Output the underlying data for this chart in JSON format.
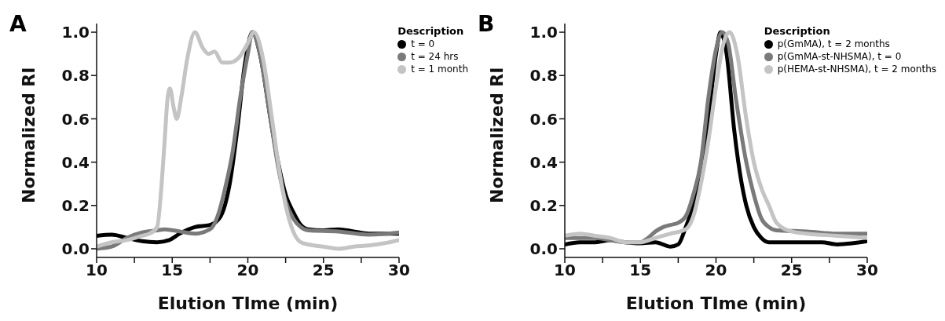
{
  "chart_data": [
    {
      "type": "line",
      "annotations": [
        "A"
      ],
      "xlabel": "Elution TIme (min)",
      "ylabel": "Normalized RI",
      "legend_title": "Description",
      "legend": "top right",
      "marker": "none",
      "line_style": "solid",
      "xlim": [
        10,
        30
      ],
      "xticks": [
        10,
        {
          "value": 12.5,
          "label": null
        },
        15,
        {
          "value": 17.5,
          "label": null
        },
        20,
        {
          "value": 22.5,
          "label": null
        },
        25,
        {
          "value": 27.5,
          "label": null
        },
        30
      ],
      "ylim": [
        -0.04,
        1.04
      ],
      "yticks": [
        {
          "value": 0,
          "label": "0.0"
        },
        {
          "value": 0.2,
          "label": "0.2"
        },
        {
          "value": 0.4,
          "label": "0.4"
        },
        {
          "value": 0.6,
          "label": "0.6"
        },
        {
          "value": 0.8,
          "label": "0.8"
        },
        {
          "value": 1,
          "label": "1.0"
        }
      ],
      "series": [
        {
          "name": "t = 0",
          "color": "#000000",
          "x": [
            10,
            11,
            12,
            13,
            14,
            14.8,
            15.5,
            16.5,
            17.5,
            18.2,
            18.8,
            19.3,
            19.8,
            20.3,
            20.8,
            21.5,
            22,
            22.5,
            23,
            23.5,
            24,
            25,
            26,
            27,
            28,
            29,
            30
          ],
          "values": [
            0.06,
            0.065,
            0.05,
            0.035,
            0.03,
            0.04,
            0.07,
            0.1,
            0.11,
            0.15,
            0.3,
            0.55,
            0.85,
            1.0,
            0.9,
            0.6,
            0.4,
            0.25,
            0.17,
            0.11,
            0.09,
            0.085,
            0.09,
            0.08,
            0.07,
            0.07,
            0.07
          ]
        },
        {
          "name": "t = 24 hrs",
          "color": "#7a7a7a",
          "x": [
            10,
            11,
            12,
            13,
            14,
            14.5,
            15.5,
            16.5,
            17.5,
            18,
            18.5,
            19,
            19.5,
            20,
            20.3,
            20.8,
            21.5,
            22,
            22.5,
            23,
            23.5,
            24,
            26,
            28,
            30
          ],
          "values": [
            0.0,
            0.01,
            0.05,
            0.075,
            0.085,
            0.09,
            0.08,
            0.07,
            0.09,
            0.15,
            0.28,
            0.45,
            0.7,
            0.9,
            1.0,
            0.9,
            0.6,
            0.38,
            0.22,
            0.14,
            0.1,
            0.085,
            0.08,
            0.065,
            0.075
          ]
        },
        {
          "name": "t = 1 month",
          "color": "#c4c4c4",
          "x": [
            10,
            11,
            12,
            13,
            13.5,
            14,
            14.3,
            14.5,
            14.7,
            14.85,
            15.1,
            15.3,
            15.6,
            16,
            16.5,
            17,
            17.4,
            17.8,
            18.3,
            18.8,
            19.5,
            20,
            20.4,
            21,
            21.6,
            22,
            22.5,
            23,
            23.5,
            24,
            25,
            26,
            27,
            28,
            29,
            30
          ],
          "values": [
            0.01,
            0.03,
            0.04,
            0.06,
            0.07,
            0.1,
            0.3,
            0.5,
            0.7,
            0.74,
            0.65,
            0.6,
            0.7,
            0.88,
            1.0,
            0.93,
            0.9,
            0.91,
            0.86,
            0.86,
            0.89,
            0.95,
            1.0,
            0.88,
            0.6,
            0.4,
            0.2,
            0.08,
            0.03,
            0.02,
            0.01,
            0.0,
            0.01,
            0.015,
            0.025,
            0.04
          ]
        }
      ]
    },
    {
      "type": "line",
      "annotations": [
        "B"
      ],
      "xlabel": "Elution TIme (min)",
      "ylabel": "Normalized RI",
      "legend_title": "Description",
      "legend": "top right",
      "marker": "none",
      "line_style": "solid",
      "xlim": [
        10,
        30
      ],
      "xticks": [
        10,
        {
          "value": 12.5,
          "label": null
        },
        15,
        {
          "value": 17.5,
          "label": null
        },
        20,
        {
          "value": 22.5,
          "label": null
        },
        25,
        {
          "value": 27.5,
          "label": null
        },
        30
      ],
      "ylim": [
        -0.04,
        1.04
      ],
      "yticks": [
        {
          "value": 0,
          "label": "0.0"
        },
        {
          "value": 0.2,
          "label": "0.2"
        },
        {
          "value": 0.4,
          "label": "0.4"
        },
        {
          "value": 0.6,
          "label": "0.6"
        },
        {
          "value": 0.8,
          "label": "0.8"
        },
        {
          "value": 1,
          "label": "1.0"
        }
      ],
      "series": [
        {
          "name": "p(GmMA), t = 2 months",
          "color": "#000000",
          "x": [
            10,
            11,
            12,
            13,
            14,
            15,
            16,
            17,
            17.5,
            18,
            18.5,
            19,
            19.5,
            20,
            20.3,
            20.7,
            21.2,
            21.7,
            22,
            22.5,
            23,
            23.5,
            24,
            26,
            27,
            28,
            29,
            30
          ],
          "values": [
            0.02,
            0.03,
            0.03,
            0.04,
            0.03,
            0.025,
            0.03,
            0.01,
            0.02,
            0.1,
            0.2,
            0.35,
            0.6,
            0.9,
            1.0,
            0.9,
            0.55,
            0.3,
            0.2,
            0.1,
            0.05,
            0.03,
            0.03,
            0.03,
            0.03,
            0.02,
            0.025,
            0.035
          ]
        },
        {
          "name": "p(GmMA-st-NHSMA), t = 0",
          "color": "#7a7a7a",
          "x": [
            10,
            11,
            12,
            13,
            14,
            15,
            15.5,
            16,
            16.5,
            17,
            17.5,
            18,
            18.5,
            19,
            19.5,
            20,
            20.4,
            20.8,
            21.3,
            22,
            22.5,
            23,
            23.5,
            24,
            26,
            28,
            30
          ],
          "values": [
            0.05,
            0.05,
            0.05,
            0.04,
            0.03,
            0.03,
            0.05,
            0.08,
            0.1,
            0.11,
            0.12,
            0.15,
            0.25,
            0.4,
            0.7,
            0.92,
            1.0,
            0.95,
            0.7,
            0.4,
            0.25,
            0.14,
            0.1,
            0.085,
            0.08,
            0.07,
            0.07
          ]
        },
        {
          "name": "p(HEMA-st-NHSMA), t = 2 months",
          "color": "#c4c4c4",
          "x": [
            10,
            11,
            12,
            13,
            14,
            15,
            16,
            17,
            18,
            18.5,
            19,
            19.5,
            20,
            20.5,
            20.9,
            21.4,
            22,
            22.5,
            23,
            23.5,
            24,
            25,
            26,
            28,
            30
          ],
          "values": [
            0.06,
            0.07,
            0.06,
            0.05,
            0.03,
            0.03,
            0.05,
            0.07,
            0.09,
            0.15,
            0.3,
            0.5,
            0.75,
            0.95,
            1.0,
            0.9,
            0.6,
            0.4,
            0.28,
            0.2,
            0.12,
            0.08,
            0.07,
            0.06,
            0.05
          ]
        }
      ]
    }
  ]
}
